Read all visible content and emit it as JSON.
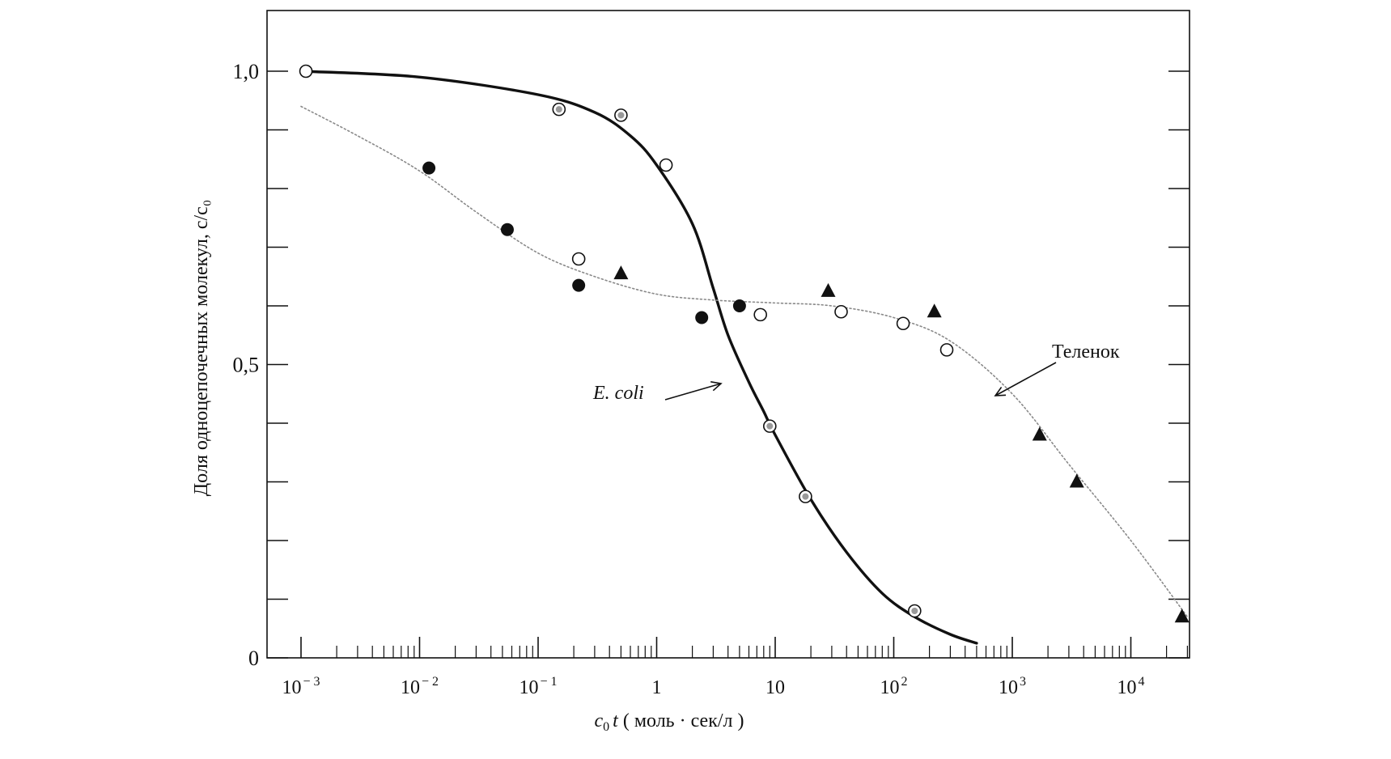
{
  "chart_data": {
    "type": "scatter",
    "xscale": "log",
    "xlim": [
      0.001,
      50000
    ],
    "ylim": [
      0,
      1.1
    ],
    "xlabel": {
      "main": "c",
      "sub": "0",
      "var": "t",
      "units": " ( моль · сек/л )"
    },
    "ylabel": "Доля одноцепочечных молекул, c/c₀",
    "xtick_labels": [
      {
        "base": "10",
        "exp": "− 3",
        "value": 0.001
      },
      {
        "base": "10",
        "exp": "− 2",
        "value": 0.01
      },
      {
        "base": "10",
        "exp": "− 1",
        "value": 0.1
      },
      {
        "base": "1",
        "exp": "",
        "value": 1
      },
      {
        "base": "10",
        "exp": "",
        "value": 10
      },
      {
        "base": "10",
        "exp": "2",
        "value": 100
      },
      {
        "base": "10",
        "exp": "3",
        "value": 1000
      },
      {
        "base": "10",
        "exp": "4",
        "value": 10000
      }
    ],
    "ytick_labels": [
      {
        "label": "0",
        "value": 0
      },
      {
        "label": "0,5",
        "value": 0.5
      },
      {
        "label": "1,0",
        "value": 1.0
      }
    ],
    "series": [
      {
        "name": "E. coli",
        "line_style": "solid",
        "curve": [
          [
            0.001,
            1.0
          ],
          [
            0.01,
            0.99
          ],
          [
            0.1,
            0.96
          ],
          [
            0.3,
            0.93
          ],
          [
            0.6,
            0.89
          ],
          [
            1,
            0.84
          ],
          [
            2,
            0.74
          ],
          [
            3,
            0.63
          ],
          [
            4,
            0.55
          ],
          [
            6,
            0.47
          ],
          [
            8,
            0.42
          ],
          [
            10,
            0.38
          ],
          [
            20,
            0.27
          ],
          [
            40,
            0.18
          ],
          [
            80,
            0.11
          ],
          [
            150,
            0.07
          ],
          [
            300,
            0.04
          ],
          [
            500,
            0.025
          ]
        ],
        "points": [
          {
            "marker": "open-circle",
            "x": 0.0011,
            "y": 1.0
          },
          {
            "marker": "dotted-circle",
            "x": 0.15,
            "y": 0.935
          },
          {
            "marker": "dotted-circle",
            "x": 0.5,
            "y": 0.925
          },
          {
            "marker": "open-circle",
            "x": 1.2,
            "y": 0.84
          },
          {
            "marker": "dotted-circle",
            "x": 9,
            "y": 0.395
          },
          {
            "marker": "dotted-circle",
            "x": 18,
            "y": 0.275
          },
          {
            "marker": "dotted-circle",
            "x": 150,
            "y": 0.08
          }
        ]
      },
      {
        "name": "Теленок",
        "line_style": "dotted",
        "curve": [
          [
            0.001,
            0.94
          ],
          [
            0.003,
            0.89
          ],
          [
            0.01,
            0.83
          ],
          [
            0.03,
            0.76
          ],
          [
            0.1,
            0.69
          ],
          [
            0.3,
            0.65
          ],
          [
            1,
            0.62
          ],
          [
            3,
            0.61
          ],
          [
            10,
            0.605
          ],
          [
            30,
            0.6
          ],
          [
            100,
            0.58
          ],
          [
            300,
            0.54
          ],
          [
            1000,
            0.45
          ],
          [
            3000,
            0.33
          ],
          [
            10000,
            0.2
          ],
          [
            30000,
            0.07
          ]
        ],
        "points": [
          {
            "marker": "filled-circle",
            "x": 0.012,
            "y": 0.835
          },
          {
            "marker": "filled-circle",
            "x": 0.055,
            "y": 0.73
          },
          {
            "marker": "open-circle",
            "x": 0.22,
            "y": 0.68
          },
          {
            "marker": "filled-circle",
            "x": 0.22,
            "y": 0.635
          },
          {
            "marker": "filled-triangle",
            "x": 0.5,
            "y": 0.655
          },
          {
            "marker": "filled-circle",
            "x": 2.4,
            "y": 0.58
          },
          {
            "marker": "filled-circle",
            "x": 5,
            "y": 0.6
          },
          {
            "marker": "open-circle",
            "x": 7.5,
            "y": 0.585
          },
          {
            "marker": "filled-triangle",
            "x": 28,
            "y": 0.625
          },
          {
            "marker": "open-circle",
            "x": 36,
            "y": 0.59
          },
          {
            "marker": "open-circle",
            "x": 120,
            "y": 0.57
          },
          {
            "marker": "filled-triangle",
            "x": 220,
            "y": 0.59
          },
          {
            "marker": "open-circle",
            "x": 280,
            "y": 0.525
          },
          {
            "marker": "filled-triangle",
            "x": 1700,
            "y": 0.38
          },
          {
            "marker": "filled-triangle",
            "x": 3500,
            "y": 0.3
          },
          {
            "marker": "filled-triangle",
            "x": 27000,
            "y": 0.07
          }
        ]
      }
    ],
    "annotations": [
      {
        "text": "E. coli",
        "style": "italic",
        "series": "E. coli"
      },
      {
        "text": "Теленок",
        "style": "normal",
        "series": "Теленок"
      }
    ],
    "grid": false,
    "legend": "none"
  }
}
